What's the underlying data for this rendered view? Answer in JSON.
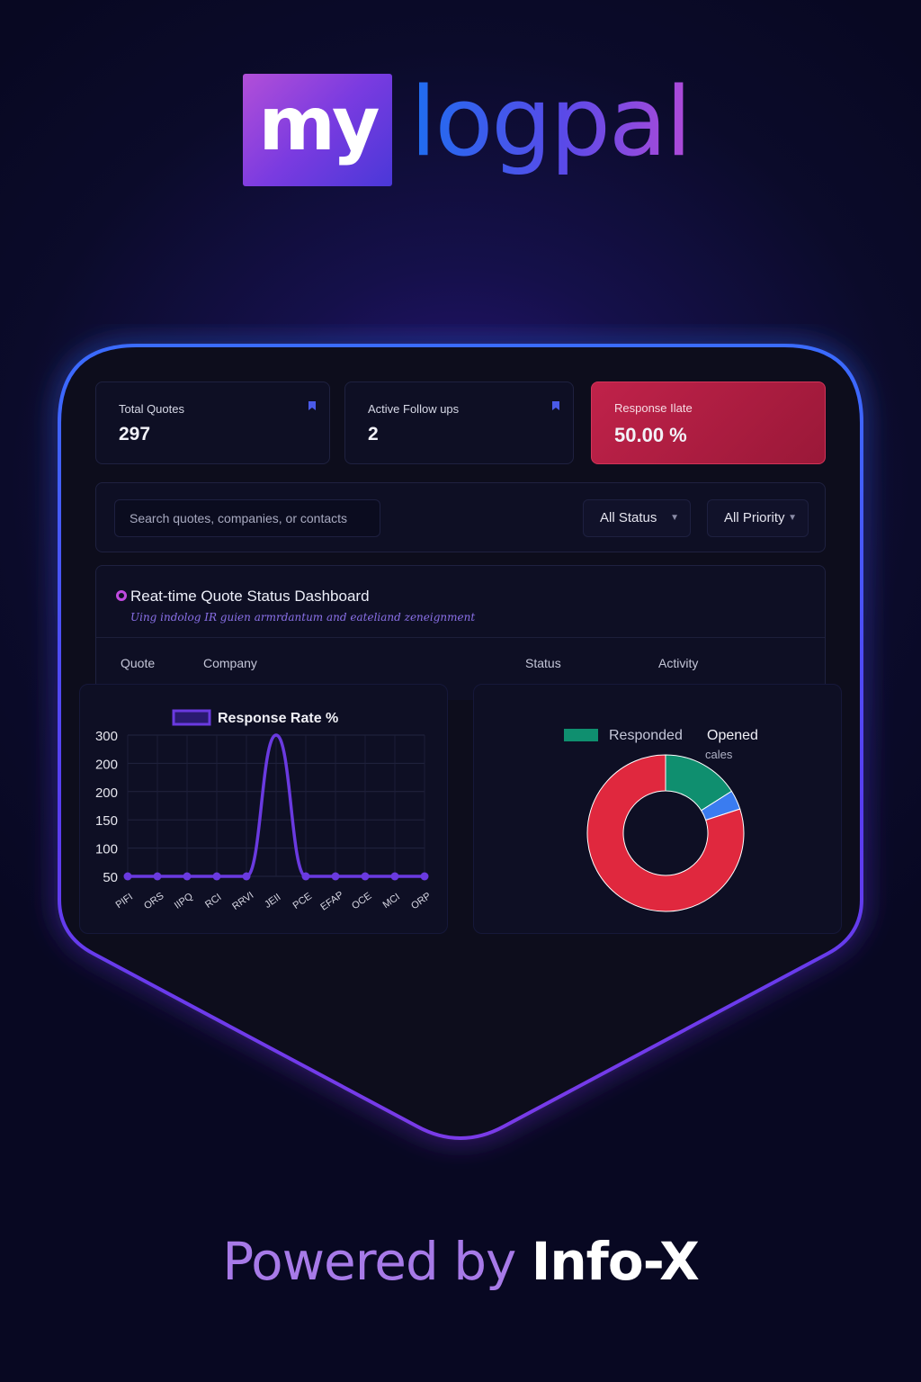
{
  "brand": {
    "logo_box": "my",
    "logo_word": "logpal",
    "powered_prefix": "Powered by",
    "powered_name": "Info-X"
  },
  "stats": [
    {
      "label": "Total Quotes",
      "value": "297",
      "icon": "user-pin-icon"
    },
    {
      "label": "Active Follow ups",
      "value": "2",
      "icon": "user-pin-icon"
    },
    {
      "label": "Response Ilate",
      "value": "50.00 %"
    }
  ],
  "filters": {
    "search_placeholder": "Search quotes, companies, or contacts",
    "status_label": "All Status",
    "priority_label": "All Priority"
  },
  "dashboard": {
    "title": "Reat-time Quote Status Dashboard",
    "subtitle": "Uing indolog IR guien armrdantum and eateliand zeneignment",
    "columns": [
      "Quote",
      "Company",
      "Status",
      "Activity"
    ]
  },
  "colors": {
    "accent_purple": "#6a3ae0",
    "responded": "#0f8f6f",
    "opened": "#3a7cf0",
    "other": "#e0283e",
    "alert_red": "#b01e42"
  },
  "chart_data": [
    {
      "type": "line",
      "title": "",
      "legend": [
        "Response Rate %"
      ],
      "y_tick_labels": [
        "300",
        "200",
        "200",
        "150",
        "100",
        "50"
      ],
      "categories": [
        "PIFI",
        "ORS",
        "IIPQ",
        "RCI",
        "RRVI",
        "JEII",
        "PCE",
        "EFAP",
        "OCE",
        "MCI",
        "ORP"
      ],
      "series": [
        {
          "name": "Response Rate %",
          "values": [
            50,
            50,
            50,
            50,
            50,
            300,
            50,
            50,
            50,
            50,
            50
          ]
        }
      ],
      "ylim": [
        50,
        300
      ],
      "grid": true,
      "legend_position": "top-center"
    },
    {
      "type": "pie",
      "legend": [
        "Responded",
        "Opened"
      ],
      "legend_note": "cales",
      "slices": [
        {
          "name": "Responded",
          "value": 16
        },
        {
          "name": "Opened",
          "value": 4
        },
        {
          "name": "",
          "value": 80
        }
      ],
      "legend_position": "top-center"
    }
  ]
}
